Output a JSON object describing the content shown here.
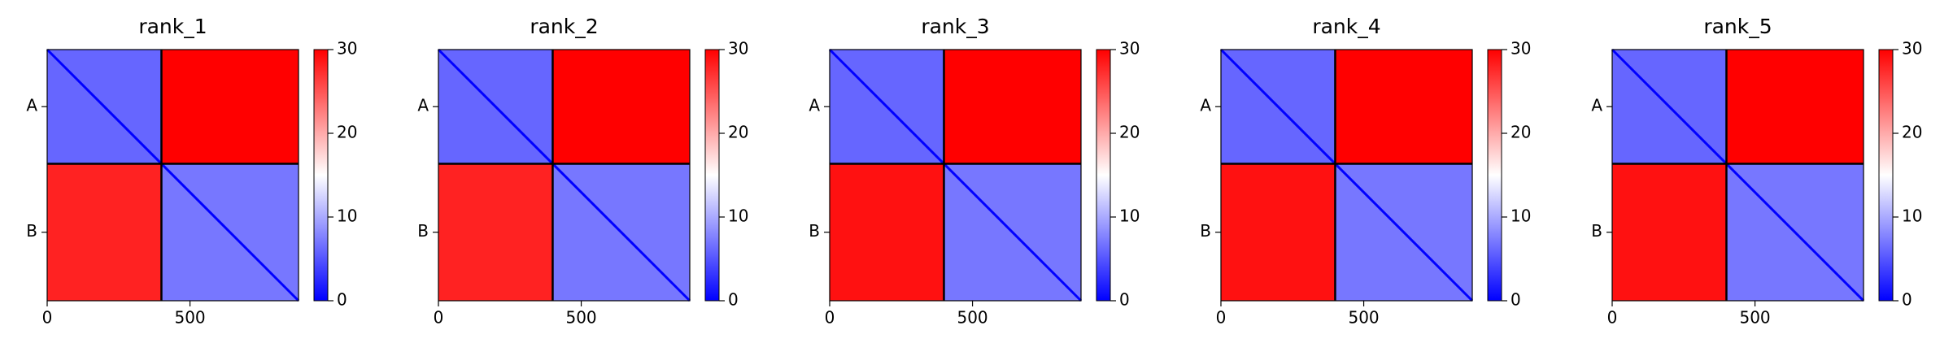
{
  "chart_data": [
    {
      "type": "heatmap",
      "title": "rank_1",
      "xlim": [
        0,
        880
      ],
      "xticks": [
        0,
        500
      ],
      "ylim": [
        880,
        0
      ],
      "yticks": [
        {
          "value": 200,
          "label": "A"
        },
        {
          "value": 640,
          "label": "B"
        }
      ],
      "block_edges": [
        0,
        400,
        880
      ],
      "values": [
        [
          6,
          30
        ],
        [
          28,
          7
        ]
      ],
      "colormap": [
        "#0000ff",
        "#ffffff",
        "#ff0000"
      ],
      "clim": [
        0,
        30
      ],
      "cticks": [
        0,
        10,
        20,
        30
      ]
    },
    {
      "type": "heatmap",
      "title": "rank_2",
      "xlim": [
        0,
        880
      ],
      "xticks": [
        0,
        500
      ],
      "ylim": [
        880,
        0
      ],
      "yticks": [
        {
          "value": 200,
          "label": "A"
        },
        {
          "value": 640,
          "label": "B"
        }
      ],
      "block_edges": [
        0,
        400,
        880
      ],
      "values": [
        [
          6,
          30
        ],
        [
          28,
          7
        ]
      ],
      "colormap": [
        "#0000ff",
        "#ffffff",
        "#ff0000"
      ],
      "clim": [
        0,
        30
      ],
      "cticks": [
        0,
        10,
        20,
        30
      ]
    },
    {
      "type": "heatmap",
      "title": "rank_3",
      "xlim": [
        0,
        880
      ],
      "xticks": [
        0,
        500
      ],
      "ylim": [
        880,
        0
      ],
      "yticks": [
        {
          "value": 200,
          "label": "A"
        },
        {
          "value": 640,
          "label": "B"
        }
      ],
      "block_edges": [
        0,
        400,
        880
      ],
      "values": [
        [
          6,
          30
        ],
        [
          29,
          7
        ]
      ],
      "colormap": [
        "#0000ff",
        "#ffffff",
        "#ff0000"
      ],
      "clim": [
        0,
        30
      ],
      "cticks": [
        0,
        10,
        20,
        30
      ]
    },
    {
      "type": "heatmap",
      "title": "rank_4",
      "xlim": [
        0,
        880
      ],
      "xticks": [
        0,
        500
      ],
      "ylim": [
        880,
        0
      ],
      "yticks": [
        {
          "value": 200,
          "label": "A"
        },
        {
          "value": 640,
          "label": "B"
        }
      ],
      "block_edges": [
        0,
        400,
        880
      ],
      "values": [
        [
          6,
          30
        ],
        [
          29,
          7
        ]
      ],
      "colormap": [
        "#0000ff",
        "#ffffff",
        "#ff0000"
      ],
      "clim": [
        0,
        30
      ],
      "cticks": [
        0,
        10,
        20,
        30
      ]
    },
    {
      "type": "heatmap",
      "title": "rank_5",
      "xlim": [
        0,
        880
      ],
      "xticks": [
        0,
        500
      ],
      "ylim": [
        880,
        0
      ],
      "yticks": [
        {
          "value": 200,
          "label": "A"
        },
        {
          "value": 640,
          "label": "B"
        }
      ],
      "block_edges": [
        0,
        400,
        880
      ],
      "values": [
        [
          6,
          30
        ],
        [
          29,
          7
        ]
      ],
      "colormap": [
        "#0000ff",
        "#ffffff",
        "#ff0000"
      ],
      "clim": [
        0,
        30
      ],
      "cticks": [
        0,
        10,
        20,
        30
      ]
    }
  ]
}
